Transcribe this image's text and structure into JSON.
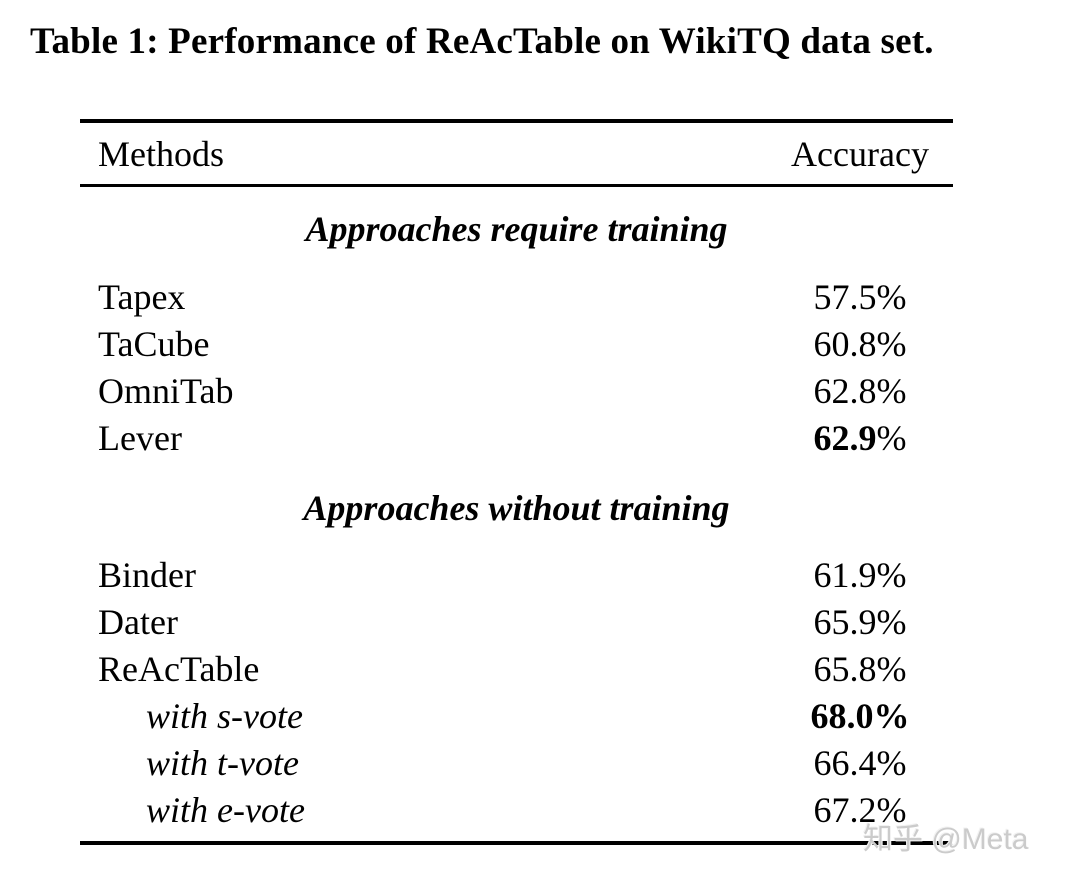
{
  "title": "Table 1: Performance of ReAcTable on WikiTQ data set.",
  "table": {
    "columns": {
      "methods": "Methods",
      "accuracy": "Accuracy"
    },
    "sections": [
      {
        "heading": "Approaches require training",
        "rows": [
          {
            "method": "Tapex",
            "value": "57.5",
            "unit": "%"
          },
          {
            "method": "TaCube",
            "value": "60.8",
            "unit": "%"
          },
          {
            "method": "OmniTab",
            "value": "62.8",
            "unit": "%"
          },
          {
            "method": "Lever",
            "value": "62.9",
            "unit": "%"
          }
        ]
      },
      {
        "heading": "Approaches without training",
        "rows": [
          {
            "method": "Binder",
            "value": "61.9",
            "unit": "%"
          },
          {
            "method": "Dater",
            "value": "65.9",
            "unit": "%"
          },
          {
            "method": "ReAcTable",
            "value": "65.8",
            "unit": "%"
          },
          {
            "method": "with s-vote",
            "value": "68.0",
            "unit": "%"
          },
          {
            "method": "with t-vote",
            "value": "66.4",
            "unit": "%"
          },
          {
            "method": "with e-vote",
            "value": "67.2",
            "unit": "%"
          }
        ]
      }
    ]
  },
  "watermark": {
    "text": "知乎 @Meta",
    "color": "#cbcbcb"
  },
  "colors": {
    "text": "#000000",
    "rule": "#000000",
    "background": "#ffffff"
  }
}
